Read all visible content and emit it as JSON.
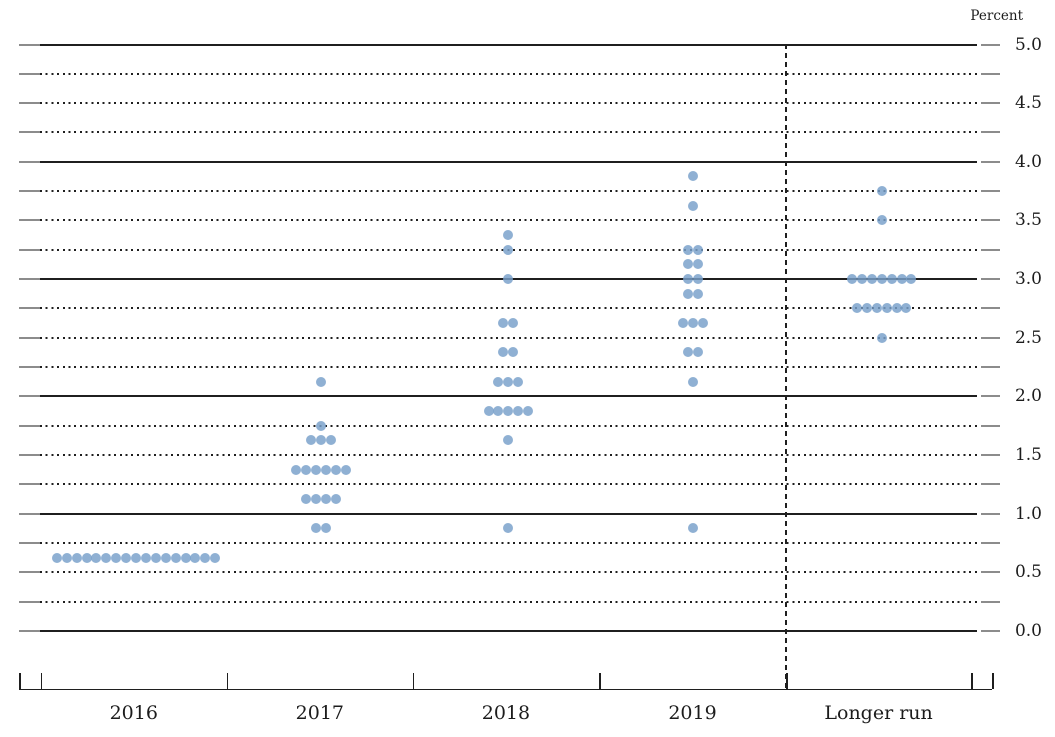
{
  "header": {
    "unit_label": "Percent"
  },
  "colors": {
    "dot_fill": "#78a2ca",
    "grid_line": "#1f1f1f",
    "grid_end_cap": "#8c8c8c",
    "text": "#1c1c1c",
    "background": "#ffffff"
  },
  "chart_data": {
    "type": "scatter",
    "subtype": "fomc-dot-plot",
    "ylabel": "Percent",
    "ylim": [
      0.0,
      5.0
    ],
    "grid": "solid lines at whole percents, dotted lines every 0.25",
    "solid_gridlines": [
      0.0,
      1.0,
      2.0,
      3.0,
      4.0,
      5.0
    ],
    "dotted_gridline_step": 0.25,
    "ytick_labels": [
      "5.0",
      "4.5",
      "4.0",
      "3.5",
      "3.0",
      "2.5",
      "2.0",
      "1.5",
      "1.0",
      "0.5",
      "0.0"
    ],
    "ytick_values": [
      5.0,
      4.5,
      4.0,
      3.5,
      3.0,
      2.5,
      2.0,
      1.5,
      1.0,
      0.5,
      0.0
    ],
    "categories": [
      "2016",
      "2017",
      "2018",
      "2019",
      "Longer run"
    ],
    "separator": {
      "style": "dashed-vertical",
      "between": [
        "2019",
        "Longer run"
      ]
    },
    "series": [
      {
        "category": "2016",
        "distribution": [
          {
            "rate": 0.625,
            "count": 17
          }
        ]
      },
      {
        "category": "2017",
        "distribution": [
          {
            "rate": 2.125,
            "count": 1
          },
          {
            "rate": 1.75,
            "count": 1
          },
          {
            "rate": 1.625,
            "count": 3
          },
          {
            "rate": 1.375,
            "count": 6
          },
          {
            "rate": 1.125,
            "count": 4
          },
          {
            "rate": 0.875,
            "count": 2
          }
        ]
      },
      {
        "category": "2018",
        "distribution": [
          {
            "rate": 3.375,
            "count": 1
          },
          {
            "rate": 3.25,
            "count": 1
          },
          {
            "rate": 3.0,
            "count": 1
          },
          {
            "rate": 2.625,
            "count": 2
          },
          {
            "rate": 2.375,
            "count": 2
          },
          {
            "rate": 2.125,
            "count": 3
          },
          {
            "rate": 1.875,
            "count": 5
          },
          {
            "rate": 1.625,
            "count": 1
          },
          {
            "rate": 0.875,
            "count": 1
          }
        ]
      },
      {
        "category": "2019",
        "distribution": [
          {
            "rate": 3.875,
            "count": 1
          },
          {
            "rate": 3.625,
            "count": 1
          },
          {
            "rate": 3.25,
            "count": 2
          },
          {
            "rate": 3.125,
            "count": 2
          },
          {
            "rate": 3.0,
            "count": 2
          },
          {
            "rate": 2.875,
            "count": 2
          },
          {
            "rate": 2.625,
            "count": 3
          },
          {
            "rate": 2.375,
            "count": 2
          },
          {
            "rate": 2.125,
            "count": 1
          },
          {
            "rate": 0.875,
            "count": 1
          }
        ]
      },
      {
        "category": "Longer run",
        "distribution": [
          {
            "rate": 3.75,
            "count": 1
          },
          {
            "rate": 3.5,
            "count": 1
          },
          {
            "rate": 3.0,
            "count": 7
          },
          {
            "rate": 2.75,
            "count": 6
          },
          {
            "rate": 2.5,
            "count": 1
          }
        ]
      }
    ]
  }
}
